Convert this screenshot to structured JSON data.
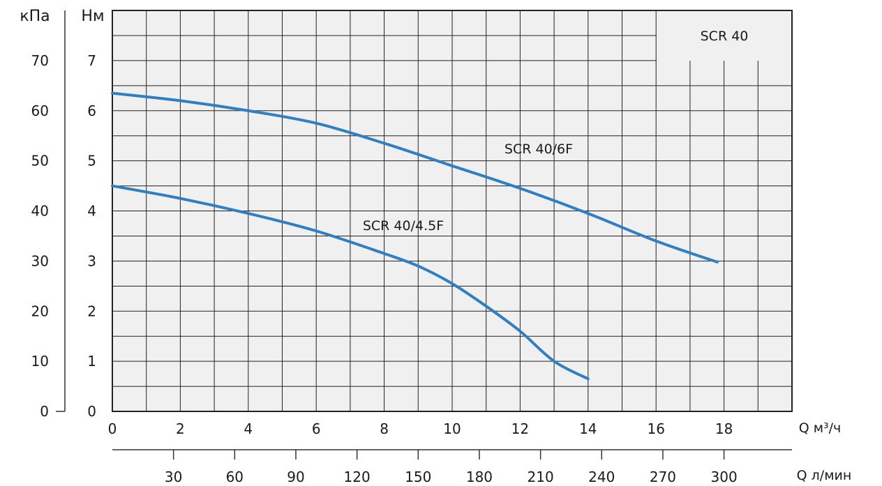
{
  "chart_data": {
    "type": "line",
    "title": "SCR 40",
    "left_axis_unit": "кПа",
    "right_axis_unit": "Нм",
    "x_unit_top": "Q м³/ч",
    "x_unit_bottom": "Q л/мин",
    "x_ticks": [
      "0",
      "2",
      "4",
      "6",
      "8",
      "10",
      "12",
      "14",
      "16",
      "18"
    ],
    "x_ticks_lmin": [
      "30",
      "60",
      "90",
      "120",
      "150",
      "180",
      "210",
      "240",
      "270",
      "300"
    ],
    "y_ticks_m": [
      "0",
      "1",
      "2",
      "3",
      "4",
      "5",
      "6",
      "7"
    ],
    "y_ticks_kpa": [
      "0",
      "10",
      "20",
      "30",
      "40",
      "50",
      "60",
      "70"
    ],
    "xlim": [
      0,
      20
    ],
    "ylim": [
      0,
      8
    ],
    "grid": true,
    "color": "#2f7fc2",
    "series": [
      {
        "name": "SCR 40/6F",
        "x": [
          0,
          2,
          4,
          6,
          8,
          10,
          12,
          14,
          16,
          17.8
        ],
        "y": [
          6.35,
          6.2,
          6.0,
          5.75,
          5.35,
          4.9,
          4.45,
          3.95,
          3.4,
          2.98
        ]
      },
      {
        "name": "SCR 40/4.5F",
        "x": [
          0,
          2,
          4,
          6,
          8,
          9,
          10,
          11,
          12,
          13,
          14
        ],
        "y": [
          4.5,
          4.25,
          3.95,
          3.6,
          3.15,
          2.9,
          2.55,
          2.1,
          1.6,
          1.0,
          0.65
        ]
      }
    ]
  }
}
